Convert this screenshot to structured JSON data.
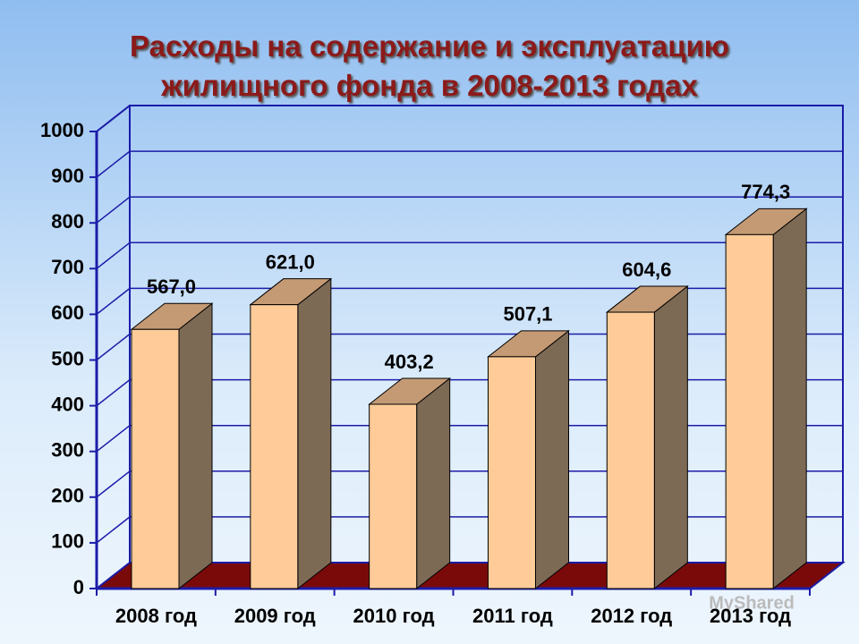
{
  "chart_data": {
    "type": "bar3d",
    "title": "Расходы на содержание и эксплуатацию жилищного фонда в 2008-2013 годах",
    "categories": [
      "2008 год",
      "2009 год",
      "2010 год",
      "2011 год",
      "2012 год",
      "2013 год"
    ],
    "values": [
      567.0,
      621.0,
      403.2,
      507.1,
      604.6,
      774.3
    ],
    "value_labels": [
      "567,0",
      "621,0",
      "403,2",
      "507,1",
      "604,6",
      "774,3"
    ],
    "color": "#ffcc99",
    "ylim": [
      0,
      1000
    ],
    "yticks": [
      0,
      100,
      200,
      300,
      400,
      500,
      600,
      700,
      800,
      900,
      1000
    ],
    "grid": true
  },
  "watermark": "MyShared"
}
